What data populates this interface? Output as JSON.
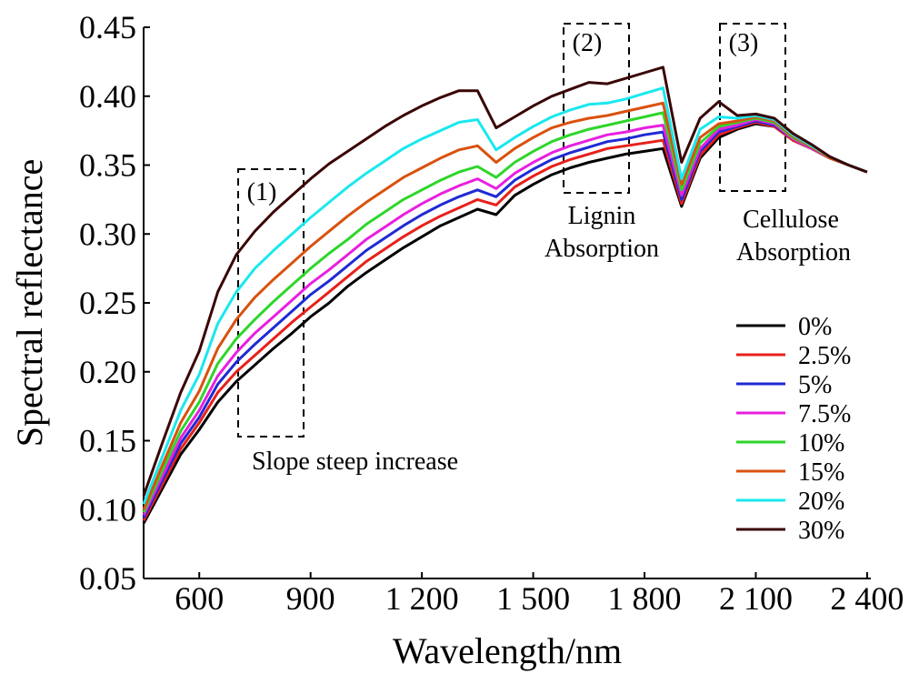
{
  "chart_data": {
    "type": "line",
    "xlabel": "Wavelength/nm",
    "ylabel": "Spectral reflectance",
    "xlim": [
      450,
      2410
    ],
    "ylim": [
      0.05,
      0.45
    ],
    "x_ticks": [
      600,
      900,
      1200,
      1500,
      1800,
      2100,
      2400
    ],
    "x_tick_labels": [
      "600",
      "900",
      "1 200",
      "1 500",
      "1 800",
      "2 100",
      "2 400"
    ],
    "y_ticks": [
      0.05,
      0.1,
      0.15,
      0.2,
      0.25,
      0.3,
      0.35,
      0.4,
      0.45
    ],
    "y_tick_labels": [
      "0.05",
      "0.10",
      "0.15",
      "0.20",
      "0.25",
      "0.30",
      "0.35",
      "0.40",
      "0.45"
    ],
    "grid": false,
    "legend_position": "right",
    "x": [
      450,
      500,
      550,
      600,
      650,
      700,
      750,
      800,
      850,
      900,
      950,
      1000,
      1050,
      1100,
      1150,
      1200,
      1250,
      1300,
      1350,
      1400,
      1450,
      1500,
      1550,
      1600,
      1650,
      1700,
      1750,
      1800,
      1850,
      1900,
      1950,
      2000,
      2050,
      2100,
      2150,
      2200,
      2250,
      2300,
      2350,
      2400
    ],
    "series": [
      {
        "name": "0%",
        "color": "#000000",
        "values": [
          0.09,
          0.115,
          0.14,
          0.158,
          0.178,
          0.193,
          0.205,
          0.217,
          0.228,
          0.24,
          0.25,
          0.262,
          0.272,
          0.281,
          0.29,
          0.298,
          0.306,
          0.312,
          0.318,
          0.314,
          0.328,
          0.336,
          0.343,
          0.348,
          0.352,
          0.355,
          0.358,
          0.36,
          0.362,
          0.32,
          0.355,
          0.37,
          0.376,
          0.38,
          0.378,
          0.368,
          0.362,
          0.355,
          0.35,
          0.345
        ]
      },
      {
        "name": "2.5%",
        "color": "#e8201a",
        "values": [
          0.092,
          0.118,
          0.144,
          0.163,
          0.185,
          0.2,
          0.212,
          0.224,
          0.236,
          0.247,
          0.258,
          0.269,
          0.28,
          0.289,
          0.298,
          0.306,
          0.313,
          0.319,
          0.325,
          0.321,
          0.334,
          0.342,
          0.349,
          0.354,
          0.358,
          0.362,
          0.364,
          0.366,
          0.368,
          0.322,
          0.357,
          0.372,
          0.377,
          0.381,
          0.378,
          0.368,
          0.362,
          0.355,
          0.35,
          0.345
        ]
      },
      {
        "name": "5%",
        "color": "#1f2ad4",
        "values": [
          0.094,
          0.121,
          0.148,
          0.167,
          0.191,
          0.207,
          0.22,
          0.232,
          0.244,
          0.256,
          0.266,
          0.277,
          0.288,
          0.297,
          0.306,
          0.314,
          0.321,
          0.327,
          0.332,
          0.327,
          0.339,
          0.347,
          0.354,
          0.359,
          0.363,
          0.367,
          0.369,
          0.372,
          0.374,
          0.325,
          0.36,
          0.374,
          0.378,
          0.382,
          0.379,
          0.369,
          0.362,
          0.355,
          0.35,
          0.345
        ]
      },
      {
        "name": "7.5%",
        "color": "#e81fe0",
        "values": [
          0.096,
          0.124,
          0.152,
          0.172,
          0.197,
          0.214,
          0.228,
          0.24,
          0.252,
          0.264,
          0.274,
          0.285,
          0.296,
          0.305,
          0.314,
          0.322,
          0.329,
          0.335,
          0.34,
          0.333,
          0.344,
          0.352,
          0.359,
          0.364,
          0.368,
          0.372,
          0.374,
          0.377,
          0.379,
          0.328,
          0.362,
          0.376,
          0.379,
          0.383,
          0.38,
          0.369,
          0.362,
          0.355,
          0.35,
          0.345
        ]
      },
      {
        "name": "10%",
        "color": "#2ed62a",
        "values": [
          0.098,
          0.128,
          0.157,
          0.178,
          0.206,
          0.224,
          0.238,
          0.251,
          0.263,
          0.275,
          0.286,
          0.296,
          0.307,
          0.316,
          0.325,
          0.332,
          0.339,
          0.345,
          0.349,
          0.341,
          0.352,
          0.36,
          0.367,
          0.372,
          0.376,
          0.379,
          0.382,
          0.385,
          0.388,
          0.332,
          0.366,
          0.378,
          0.381,
          0.384,
          0.381,
          0.37,
          0.363,
          0.355,
          0.35,
          0.345
        ]
      },
      {
        "name": "15%",
        "color": "#d9510e",
        "values": [
          0.1,
          0.132,
          0.163,
          0.186,
          0.217,
          0.238,
          0.254,
          0.267,
          0.279,
          0.291,
          0.302,
          0.313,
          0.323,
          0.332,
          0.341,
          0.348,
          0.355,
          0.361,
          0.364,
          0.352,
          0.362,
          0.37,
          0.377,
          0.381,
          0.384,
          0.386,
          0.389,
          0.392,
          0.395,
          0.336,
          0.37,
          0.38,
          0.382,
          0.385,
          0.382,
          0.371,
          0.363,
          0.355,
          0.35,
          0.345
        ]
      },
      {
        "name": "20%",
        "color": "#19e8ee",
        "values": [
          0.104,
          0.138,
          0.172,
          0.198,
          0.235,
          0.258,
          0.275,
          0.288,
          0.3,
          0.312,
          0.323,
          0.334,
          0.344,
          0.353,
          0.362,
          0.369,
          0.375,
          0.381,
          0.383,
          0.361,
          0.37,
          0.378,
          0.385,
          0.39,
          0.394,
          0.395,
          0.398,
          0.402,
          0.406,
          0.34,
          0.376,
          0.385,
          0.384,
          0.386,
          0.383,
          0.372,
          0.364,
          0.356,
          0.35,
          0.345
        ]
      },
      {
        "name": "30%",
        "color": "#3a0505",
        "values": [
          0.11,
          0.148,
          0.185,
          0.215,
          0.258,
          0.285,
          0.302,
          0.316,
          0.328,
          0.34,
          0.351,
          0.36,
          0.369,
          0.378,
          0.386,
          0.393,
          0.399,
          0.404,
          0.404,
          0.377,
          0.385,
          0.393,
          0.4,
          0.405,
          0.41,
          0.409,
          0.413,
          0.417,
          0.421,
          0.352,
          0.384,
          0.396,
          0.386,
          0.387,
          0.384,
          0.373,
          0.365,
          0.356,
          0.35,
          0.345
        ]
      }
    ],
    "annotations": {
      "box1": "(1)",
      "box2": "(2)",
      "box3": "(3)",
      "label1": "Slope steep increase",
      "label2_line1": "Lignin",
      "label2_line2": "Absorption",
      "label3_line1": "Cellulose",
      "label3_line2": "Absorption"
    }
  }
}
